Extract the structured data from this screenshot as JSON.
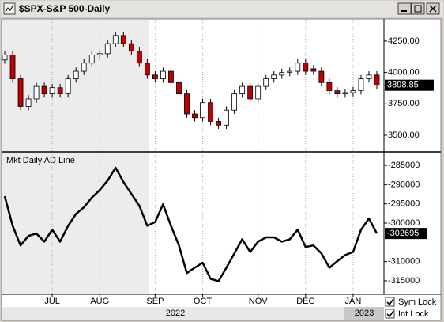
{
  "window": {
    "checkboxes": [
      {
        "label": "Sym Lock",
        "checked": true
      },
      {
        "label": "Int Lock",
        "checked": true
      }
    ],
    "years": [
      "2022",
      "2023"
    ]
  },
  "chart_data": [
    {
      "type": "candlestick",
      "title": "$SPX-S&P 500-Daily",
      "open": [
        4100,
        4140,
        3950,
        3730,
        3790,
        3890,
        3830,
        3880,
        3830,
        3950,
        4010,
        4075,
        4140,
        4150,
        4230,
        4295,
        4230,
        4170,
        4075,
        3980,
        3950,
        4010,
        3920,
        3830,
        3670,
        3640,
        3760,
        3610,
        3580,
        3700,
        3830,
        3890,
        3790,
        3890,
        3950,
        3980,
        4000,
        4010,
        4075,
        4030,
        4010,
        3920,
        3855,
        3830,
        3840,
        3855,
        3950,
        3980
      ],
      "high": [
        4170,
        4170,
        3980,
        3820,
        3920,
        3920,
        3910,
        3910,
        3980,
        4040,
        4105,
        4170,
        4180,
        4260,
        4325,
        4325,
        4260,
        4200,
        4105,
        4010,
        4040,
        4040,
        3950,
        3860,
        3700,
        3790,
        3790,
        3640,
        3730,
        3860,
        3920,
        3920,
        3920,
        3980,
        4010,
        4030,
        4040,
        4105,
        4105,
        4060,
        4040,
        3950,
        3885,
        3870,
        3885,
        3980,
        4010,
        4010
      ],
      "low": [
        4070,
        3920,
        3700,
        3700,
        3760,
        3800,
        3800,
        3800,
        3800,
        3920,
        3980,
        4045,
        4110,
        4120,
        4200,
        4200,
        4140,
        4045,
        3950,
        3920,
        3920,
        3890,
        3800,
        3640,
        3610,
        3610,
        3580,
        3550,
        3550,
        3670,
        3800,
        3760,
        3760,
        3860,
        3920,
        3950,
        3970,
        3980,
        3980,
        3980,
        3890,
        3825,
        3800,
        3800,
        3810,
        3825,
        3920,
        3868
      ],
      "close": [
        4140,
        3950,
        3730,
        3790,
        3890,
        3830,
        3880,
        3830,
        3950,
        4010,
        4075,
        4140,
        4150,
        4230,
        4295,
        4230,
        4170,
        4075,
        3980,
        3950,
        4010,
        3920,
        3830,
        3670,
        3640,
        3760,
        3610,
        3580,
        3700,
        3830,
        3890,
        3790,
        3890,
        3950,
        3980,
        4000,
        4010,
        4075,
        4010,
        4010,
        3920,
        3855,
        3830,
        3840,
        3855,
        3950,
        3980,
        3898.85
      ],
      "up_color": "#ffffff",
      "down_color": "#c00000",
      "ylim": [
        3380,
        4420
      ],
      "yticks": [
        {
          "value": 3500,
          "label": "3500.00"
        },
        {
          "value": 3750,
          "label": "3750.00"
        },
        {
          "value": 4000,
          "label": "4000.00"
        },
        {
          "value": 4250,
          "label": "4250.00"
        }
      ]
    },
    {
      "type": "line",
      "title": "Mkt Daily AD Line",
      "categories": [
        null,
        null,
        null,
        null,
        null,
        null,
        "JUL",
        null,
        null,
        null,
        null,
        null,
        "AUG",
        null,
        null,
        null,
        null,
        null,
        null,
        "SEP",
        null,
        null,
        null,
        null,
        null,
        "OCT",
        null,
        null,
        null,
        null,
        null,
        null,
        "NOV",
        null,
        null,
        null,
        null,
        null,
        "DEC",
        null,
        null,
        null,
        null,
        null,
        "JAN",
        null,
        null,
        null
      ],
      "values": [
        -293000,
        -300700,
        -305800,
        -303300,
        -302700,
        -304800,
        -301700,
        -304800,
        -300700,
        -297600,
        -295900,
        -293400,
        -291400,
        -288900,
        -285600,
        -289300,
        -292400,
        -295500,
        -300700,
        -299700,
        -295100,
        -300700,
        -305800,
        -313000,
        -311600,
        -310300,
        -314500,
        -315100,
        -311600,
        -307900,
        -304200,
        -307500,
        -304800,
        -303700,
        -303700,
        -304800,
        -304200,
        -301700,
        -306200,
        -305800,
        -307900,
        -311600,
        -309900,
        -308300,
        -307500,
        -301700,
        -298800,
        -302695
      ],
      "color": "#000000",
      "ylim": [
        -318300,
        -282100
      ],
      "yticks": [
        -315000,
        -310000,
        -300000,
        -295000,
        -290000,
        -285000
      ]
    }
  ]
}
